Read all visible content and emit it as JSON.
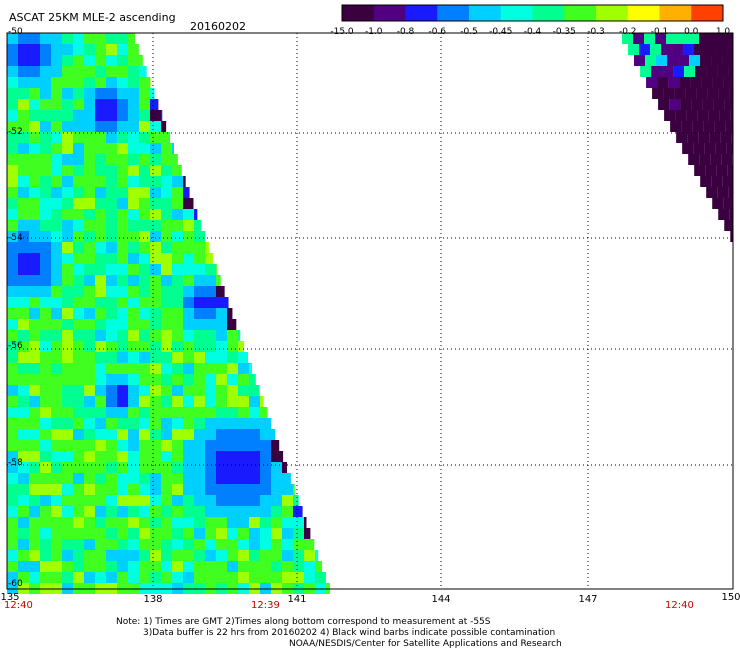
{
  "header": {
    "title": "ASCAT 25KM MLE-2 ascending",
    "date": "20160202"
  },
  "colorbar": {
    "tick_labels": [
      "-15.0",
      "-1.0",
      "-0.8",
      "-0.6",
      "-0.5",
      "-0.45",
      "-0.4",
      "-0.35",
      "-0.3",
      "-0.2",
      "-0.1",
      "0.0",
      "1.0"
    ],
    "colors": [
      "#3a0040",
      "#500080",
      "#1a1aff",
      "#0080ff",
      "#00d0ff",
      "#00ffe0",
      "#00ff90",
      "#40ff20",
      "#a0ff00",
      "#ffff00",
      "#ffb000",
      "#ff4000"
    ]
  },
  "map": {
    "lon_range": [
      135,
      150
    ],
    "lat_range": [
      -60,
      -50
    ],
    "lon_ticks": [
      "135",
      "138",
      "141",
      "144",
      "147",
      "150"
    ],
    "lat_ticks": [
      "-50",
      "-52",
      "-54",
      "-56",
      "-58",
      "-60"
    ],
    "times": [
      "12:40",
      "12:39",
      "12:40"
    ]
  },
  "notes": {
    "line1": "Note: 1) Times are GMT 2)Times along bottom correspond to measurement at -55S",
    "line2": "3)Data buffer is 22 hrs from 20160202 4) Black wind barbs indicate possible contamination",
    "line3": "NOAA/NESDIS/Center for Satellite Applications and Research"
  }
}
